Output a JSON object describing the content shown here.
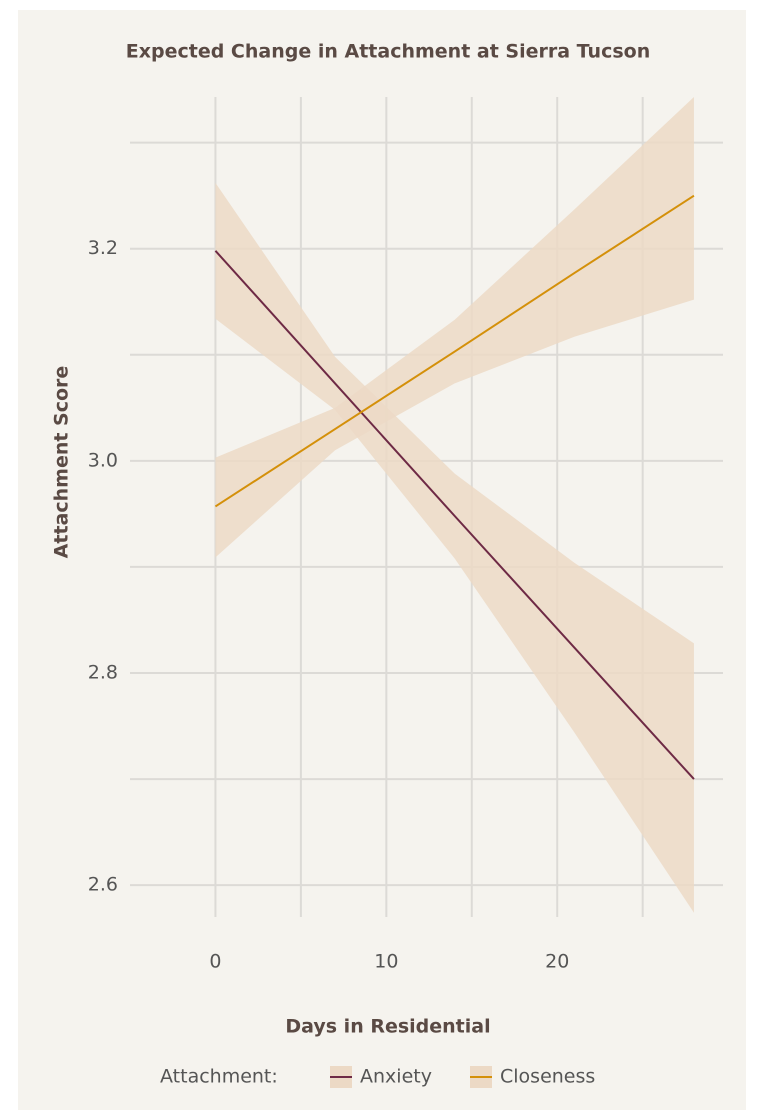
{
  "chart_data": {
    "type": "line",
    "title": "Expected Change in Attachment at Sierra Tucson",
    "x_label": "Days in Residential",
    "y_label": "Attachment Score",
    "legend_title": "Attachment:",
    "x": [
      0,
      7,
      14,
      21,
      28
    ],
    "series": [
      {
        "name": "Anxiety",
        "color": "#6e2a45",
        "values": [
          3.198,
          3.073,
          2.948,
          2.824,
          2.7
        ],
        "upper": [
          3.262,
          3.098,
          2.988,
          2.904,
          2.828
        ],
        "lower": [
          3.134,
          3.048,
          2.908,
          2.744,
          2.574
        ]
      },
      {
        "name": "Closeness",
        "color": "#d4900a",
        "values": [
          2.957,
          3.03,
          3.103,
          3.177,
          3.25
        ],
        "upper": [
          3.003,
          3.05,
          3.133,
          3.237,
          3.343
        ],
        "lower": [
          2.909,
          3.01,
          3.073,
          3.117,
          3.152
        ]
      }
    ],
    "ribbon_color": "#ecd9c5",
    "xlim": [
      -5,
      29.7
    ],
    "ylim": [
      2.57,
      3.343
    ],
    "xticks": [
      0,
      10,
      20
    ],
    "xminor": [
      5,
      15,
      25
    ],
    "yticks": [
      2.6,
      2.8,
      {
        "value": 3,
        "label": "3.0"
      },
      3.2
    ],
    "yminor": [
      2.7,
      2.9,
      3.1,
      3.3
    ],
    "grid": true,
    "legend": "bottom"
  }
}
